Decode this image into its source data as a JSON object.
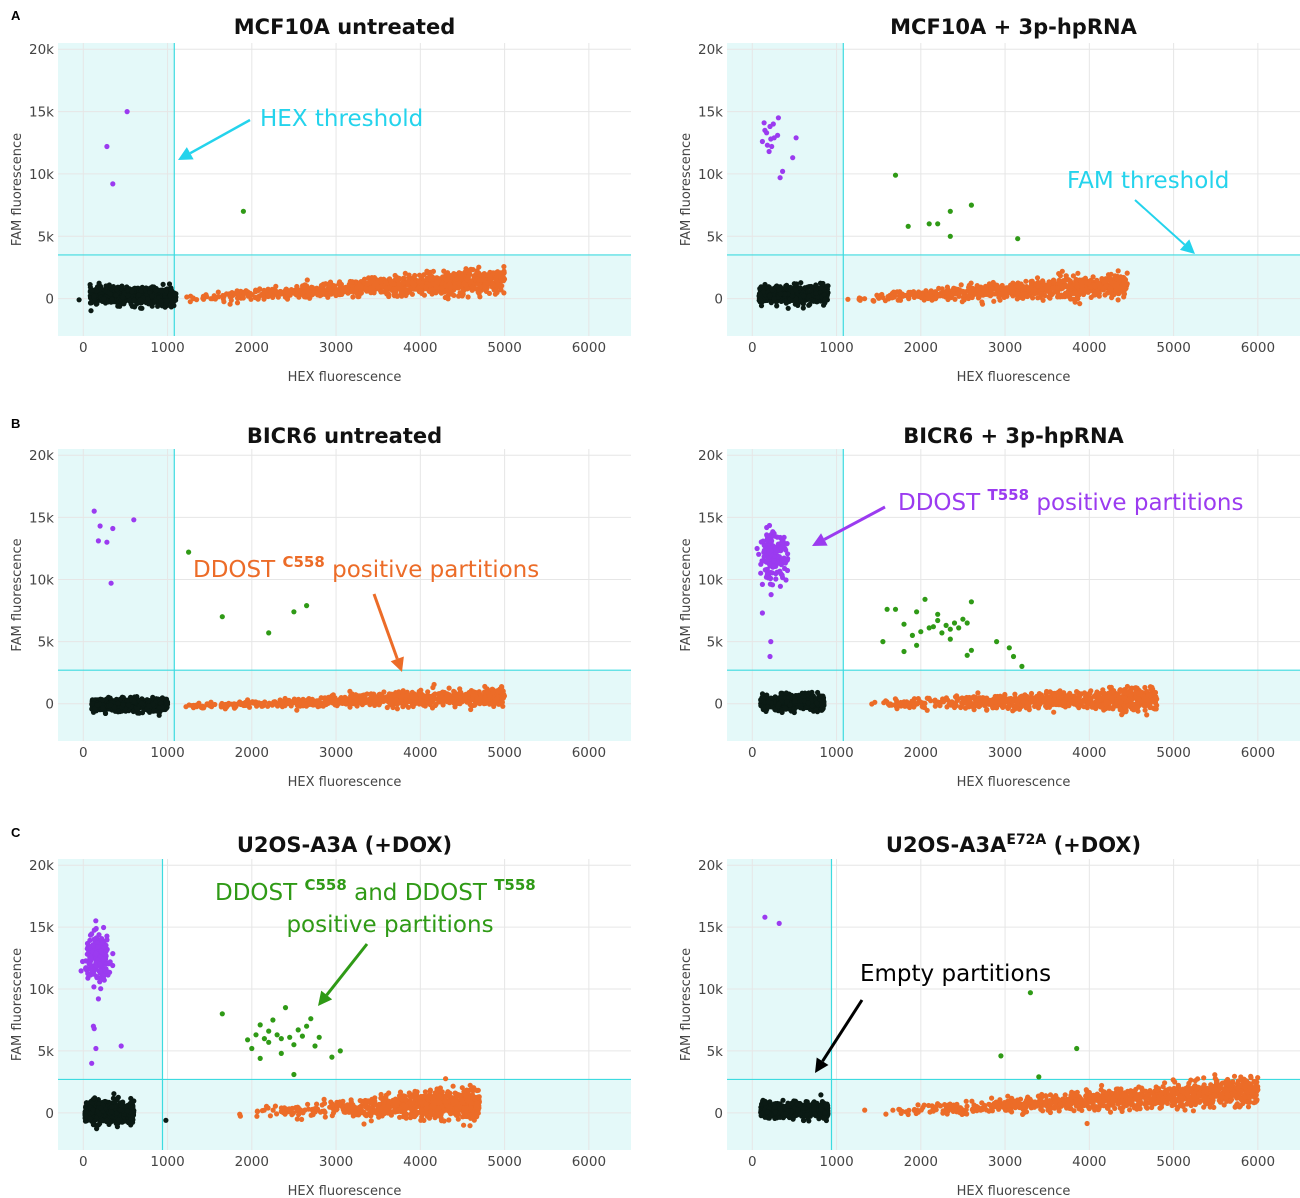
{
  "panel_letters": [
    "A",
    "B",
    "C"
  ],
  "colors": {
    "empty": "#0b1a14",
    "fam": "#9b3bf0",
    "hex": "#ec6c28",
    "double": "#2f9a16",
    "threshold": "#3ddbe0",
    "shade": "#e4f9f9",
    "hex_threshold_annotation": "#24d3ec",
    "empty_annotation": "#000000"
  },
  "chart_data": [
    {
      "type": "scatter",
      "panel": "A",
      "title": "MCF10A  untreated",
      "title_sup": "",
      "title_suffix": "",
      "xlabel": "HEX fluorescence",
      "ylabel": "FAM fluorescence",
      "xlim": [
        -300,
        6500
      ],
      "ylim": [
        -3000,
        20500
      ],
      "x_ticks": [
        0,
        1000,
        2000,
        3000,
        4000,
        5000,
        6000
      ],
      "x_tick_labels": [
        "0",
        "1000",
        "2000",
        "3000",
        "4000",
        "5000",
        "6000"
      ],
      "y_ticks": [
        0,
        5000,
        10000,
        15000,
        20000
      ],
      "y_tick_labels": [
        "0",
        "5k",
        "10k",
        "15k",
        "20k"
      ],
      "hex_threshold": 1080,
      "fam_threshold": 3500,
      "clusters": {
        "empty": {
          "x_range": [
            80,
            1100
          ],
          "y_center": 200,
          "y_spread": 750,
          "n": 600
        },
        "hex_positive": {
          "x_start": 1150,
          "x_end": 5000,
          "y_start": 0,
          "y_end": 1500,
          "y_spread": 500,
          "n": 900,
          "x_power": 0.55
        },
        "fam_positive": [
          [
            280,
            12200
          ],
          [
            520,
            15000
          ],
          [
            350,
            9200
          ],
          [
            -50,
            -100
          ]
        ],
        "double_positive": [
          [
            1900,
            7000
          ]
        ]
      },
      "annotations": [
        {
          "text": "HEX threshold",
          "sup": "",
          "text2": "",
          "color": "hex_threshold_annotation",
          "bold_sup": false
        }
      ]
    },
    {
      "type": "scatter",
      "panel": "",
      "title": "MCF10A + 3p-hpRNA",
      "title_sup": "",
      "title_suffix": "",
      "xlabel": "HEX fluorescence",
      "ylabel": "FAM fluorescence",
      "xlim": [
        -300,
        6500
      ],
      "ylim": [
        -3000,
        20500
      ],
      "x_ticks": [
        0,
        1000,
        2000,
        3000,
        4000,
        5000,
        6000
      ],
      "x_tick_labels": [
        "0",
        "1000",
        "2000",
        "3000",
        "4000",
        "5000",
        "6000"
      ],
      "y_ticks": [
        0,
        5000,
        10000,
        15000,
        20000
      ],
      "y_tick_labels": [
        "0",
        "5k",
        "10k",
        "15k",
        "20k"
      ],
      "hex_threshold": 1080,
      "fam_threshold": 3500,
      "clusters": {
        "empty": {
          "x_range": [
            80,
            900
          ],
          "y_center": 300,
          "y_spread": 800,
          "n": 520
        },
        "hex_positive": {
          "x_start": 1100,
          "x_end": 4450,
          "y_start": 0,
          "y_end": 1100,
          "y_spread": 450,
          "n": 800,
          "x_power": 0.5
        },
        "fam_positive": [
          [
            150,
            13500
          ],
          [
            220,
            12800
          ],
          [
            180,
            12300
          ],
          [
            250,
            14000
          ],
          [
            120,
            12600
          ],
          [
            300,
            13100
          ],
          [
            200,
            11800
          ],
          [
            260,
            12900
          ],
          [
            170,
            13300
          ],
          [
            230,
            12200
          ],
          [
            310,
            14500
          ],
          [
            360,
            10200
          ],
          [
            520,
            12900
          ],
          [
            480,
            11300
          ],
          [
            330,
            9700
          ],
          [
            140,
            14100
          ],
          [
            210,
            13800
          ]
        ],
        "double_positive": [
          [
            1700,
            9900
          ],
          [
            1850,
            5800
          ],
          [
            2100,
            6000
          ],
          [
            2200,
            6000
          ],
          [
            2350,
            7000
          ],
          [
            2350,
            5000
          ],
          [
            2600,
            7500
          ],
          [
            3150,
            4800
          ]
        ]
      },
      "annotations": [
        {
          "text": "FAM threshold",
          "sup": "",
          "text2": "",
          "color": "hex_threshold_annotation",
          "bold_sup": false
        }
      ]
    },
    {
      "type": "scatter",
      "panel": "B",
      "title": "BICR6  untreated",
      "title_sup": "",
      "title_suffix": "",
      "xlabel": "HEX fluorescence",
      "ylabel": "FAM fluorescence",
      "xlim": [
        -300,
        6500
      ],
      "ylim": [
        -3000,
        20500
      ],
      "x_ticks": [
        0,
        1000,
        2000,
        3000,
        4000,
        5000,
        6000
      ],
      "x_tick_labels": [
        "0",
        "1000",
        "2000",
        "3000",
        "4000",
        "5000",
        "6000"
      ],
      "y_ticks": [
        0,
        5000,
        10000,
        15000,
        20000
      ],
      "y_tick_labels": [
        "0",
        "5k",
        "10k",
        "15k",
        "20k"
      ],
      "hex_threshold": 1080,
      "fam_threshold": 2700,
      "clusters": {
        "empty": {
          "x_range": [
            100,
            1000
          ],
          "y_center": -100,
          "y_spread": 600,
          "n": 560
        },
        "hex_positive": {
          "x_start": 1150,
          "x_end": 5000,
          "y_start": -200,
          "y_end": 600,
          "y_spread": 350,
          "n": 800,
          "x_power": 0.55
        },
        "fam_positive": [
          [
            130,
            15500
          ],
          [
            200,
            14300
          ],
          [
            350,
            14100
          ],
          [
            180,
            13100
          ],
          [
            280,
            13000
          ],
          [
            600,
            14800
          ],
          [
            330,
            9700
          ]
        ],
        "double_positive": [
          [
            1250,
            12200
          ],
          [
            1650,
            7000
          ],
          [
            2200,
            5700
          ],
          [
            2500,
            7400
          ],
          [
            2650,
            7900
          ]
        ]
      },
      "annotations": [
        {
          "text": "DDOST ",
          "sup": "C558",
          "text2": " positive partitions",
          "color": "hex",
          "bold_sup": true
        }
      ]
    },
    {
      "type": "scatter",
      "panel": "",
      "title": "BICR6 + 3p-hpRNA",
      "title_sup": "",
      "title_suffix": "",
      "xlabel": "HEX fluorescence",
      "ylabel": "FAM fluorescence",
      "xlim": [
        -300,
        6500
      ],
      "ylim": [
        -3000,
        20500
      ],
      "x_ticks": [
        0,
        1000,
        2000,
        3000,
        4000,
        5000,
        6000
      ],
      "x_tick_labels": [
        "0",
        "1000",
        "2000",
        "3000",
        "4000",
        "5000",
        "6000"
      ],
      "y_ticks": [
        0,
        5000,
        10000,
        15000,
        20000
      ],
      "y_tick_labels": [
        "0",
        "5k",
        "10k",
        "15k",
        "20k"
      ],
      "hex_threshold": 1080,
      "fam_threshold": 2700,
      "clusters": {
        "empty": {
          "x_range": [
            100,
            850
          ],
          "y_center": 100,
          "y_spread": 650,
          "n": 500
        },
        "hex_positive": {
          "x_start": 1100,
          "x_end": 4800,
          "y_start": -100,
          "y_end": 400,
          "y_spread": 450,
          "n": 820,
          "x_power": 0.45
        },
        "fam_positive_cloud": {
          "x_center": 250,
          "x_spread": 160,
          "y_center": 11800,
          "y_spread": 1300,
          "n": 170
        },
        "fam_positive": [
          [
            220,
            5000
          ],
          [
            210,
            3800
          ],
          [
            120,
            7300
          ]
        ],
        "double_positive": [
          [
            1550,
            5000
          ],
          [
            1600,
            7600
          ],
          [
            1700,
            7600
          ],
          [
            1800,
            4200
          ],
          [
            1800,
            6400
          ],
          [
            1900,
            5500
          ],
          [
            1950,
            7400
          ],
          [
            2000,
            5800
          ],
          [
            2050,
            8400
          ],
          [
            2100,
            6100
          ],
          [
            2150,
            6200
          ],
          [
            2200,
            6700
          ],
          [
            2250,
            5700
          ],
          [
            2300,
            6300
          ],
          [
            2350,
            6000
          ],
          [
            2400,
            6500
          ],
          [
            2450,
            6100
          ],
          [
            2500,
            6800
          ],
          [
            2550,
            6500
          ],
          [
            2600,
            8200
          ],
          [
            2600,
            4300
          ],
          [
            2550,
            3900
          ],
          [
            2900,
            5000
          ],
          [
            3050,
            4500
          ],
          [
            3100,
            3800
          ],
          [
            3200,
            3000
          ],
          [
            2200,
            7200
          ],
          [
            1950,
            4700
          ],
          [
            2350,
            5200
          ]
        ]
      },
      "annotations": [
        {
          "text": "DDOST ",
          "sup": "T558",
          "text2": " positive partitions",
          "color": "fam",
          "bold_sup": true
        }
      ]
    },
    {
      "type": "scatter",
      "panel": "C",
      "title": "U2OS-A3A (+DOX)",
      "title_sup": "",
      "title_suffix": "",
      "xlabel": "HEX fluorescence",
      "ylabel": "FAM fluorescence",
      "xlim": [
        -300,
        6500
      ],
      "ylim": [
        -3000,
        20500
      ],
      "x_ticks": [
        0,
        1000,
        2000,
        3000,
        4000,
        5000,
        6000
      ],
      "x_tick_labels": [
        "0",
        "1000",
        "2000",
        "3000",
        "4000",
        "5000",
        "6000"
      ],
      "y_ticks": [
        0,
        5000,
        10000,
        15000,
        20000
      ],
      "y_tick_labels": [
        "0",
        "5k",
        "10k",
        "15k",
        "20k"
      ],
      "hex_threshold": 940,
      "fam_threshold": 2700,
      "clusters": {
        "empty": {
          "x_range": [
            20,
            600
          ],
          "y_center": 100,
          "y_spread": 900,
          "n": 650
        },
        "hex_positive": {
          "x_start": 1500,
          "x_end": 4700,
          "y_start": -100,
          "y_end": 800,
          "y_spread": 600,
          "n": 820,
          "x_power": 0.3
        },
        "fam_positive_cloud": {
          "x_center": 180,
          "x_spread": 150,
          "y_center": 12500,
          "y_spread": 1300,
          "n": 220
        },
        "fam_positive": [
          [
            100,
            4000
          ],
          [
            150,
            5200
          ],
          [
            120,
            7000
          ],
          [
            180,
            9200
          ],
          [
            450,
            5400
          ],
          [
            130,
            6800
          ],
          [
            980,
            -600
          ]
        ],
        "double_positive": [
          [
            1650,
            8000
          ],
          [
            1950,
            5900
          ],
          [
            2000,
            5200
          ],
          [
            2050,
            6300
          ],
          [
            2100,
            7100
          ],
          [
            2150,
            6000
          ],
          [
            2200,
            5700
          ],
          [
            2250,
            7500
          ],
          [
            2300,
            6300
          ],
          [
            2350,
            6000
          ],
          [
            2400,
            8500
          ],
          [
            2450,
            6100
          ],
          [
            2500,
            5500
          ],
          [
            2550,
            6700
          ],
          [
            2600,
            6200
          ],
          [
            2700,
            7600
          ],
          [
            2750,
            5400
          ],
          [
            2800,
            6100
          ],
          [
            2500,
            3100
          ],
          [
            2950,
            4500
          ],
          [
            3050,
            5000
          ],
          [
            2100,
            4400
          ],
          [
            2350,
            4800
          ],
          [
            2650,
            7000
          ],
          [
            2200,
            6600
          ]
        ]
      },
      "annotations": [
        {
          "text": "DDOST ",
          "sup": "C558",
          "text2": " and DDOST ",
          "sup2": "T558",
          "line2": "positive partitions",
          "color": "double",
          "bold_sup": true
        }
      ]
    },
    {
      "type": "scatter",
      "panel": "",
      "title": "U2OS-A3A",
      "title_sup": "E72A",
      "title_suffix": " (+DOX)",
      "xlabel": "HEX fluorescence",
      "ylabel": "FAM fluorescence",
      "xlim": [
        -300,
        6500
      ],
      "ylim": [
        -3000,
        20500
      ],
      "x_ticks": [
        0,
        1000,
        2000,
        3000,
        4000,
        5000,
        6000
      ],
      "x_tick_labels": [
        "0",
        "1000",
        "2000",
        "3000",
        "4000",
        "5000",
        "6000"
      ],
      "y_ticks": [
        0,
        5000,
        10000,
        15000,
        20000
      ],
      "y_tick_labels": [
        "0",
        "5k",
        "10k",
        "15k",
        "20k"
      ],
      "hex_threshold": 940,
      "fam_threshold": 2700,
      "clusters": {
        "empty": {
          "x_range": [
            100,
            900
          ],
          "y_center": 200,
          "y_spread": 650,
          "n": 600
        },
        "hex_positive": {
          "x_start": 1200,
          "x_end": 6000,
          "y_start": -100,
          "y_end": 1800,
          "y_spread": 550,
          "n": 1000,
          "x_power": 0.45
        },
        "fam_positive": [
          [
            150,
            15800
          ],
          [
            320,
            15300
          ]
        ],
        "double_positive": [
          [
            3300,
            9700
          ],
          [
            3850,
            5200
          ],
          [
            2950,
            4600
          ],
          [
            3400,
            2900
          ]
        ]
      },
      "annotations": [
        {
          "text": "Empty partitions",
          "sup": "",
          "text2": "",
          "color": "empty_annotation",
          "bold_sup": false
        }
      ]
    }
  ]
}
